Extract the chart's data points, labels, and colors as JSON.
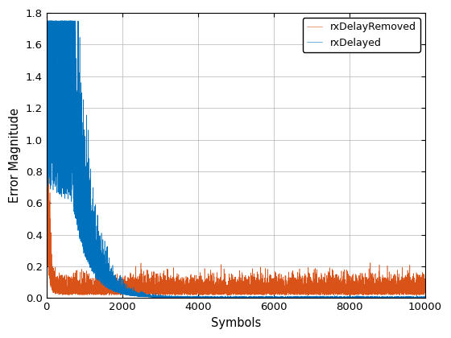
{
  "n_symbols": 10000,
  "xlabel": "Symbols",
  "ylabel": "Error Magnitude",
  "ylim": [
    0,
    1.8
  ],
  "xlim": [
    0,
    10000
  ],
  "yticks": [
    0,
    0.2,
    0.4,
    0.6,
    0.8,
    1.0,
    1.2,
    1.4,
    1.6,
    1.8
  ],
  "xticks": [
    0,
    2000,
    4000,
    6000,
    8000,
    10000
  ],
  "line1_label": "rxDelayed",
  "line2_label": "rxDelayRemoved",
  "line1_color": "#0072BD",
  "line2_color": "#D95319",
  "background_color": "#FFFFFF",
  "grid_color": "#b0b0b0",
  "legend_loc": "upper right",
  "seed": 42,
  "figsize": [
    5.6,
    4.2
  ],
  "dpi": 100
}
